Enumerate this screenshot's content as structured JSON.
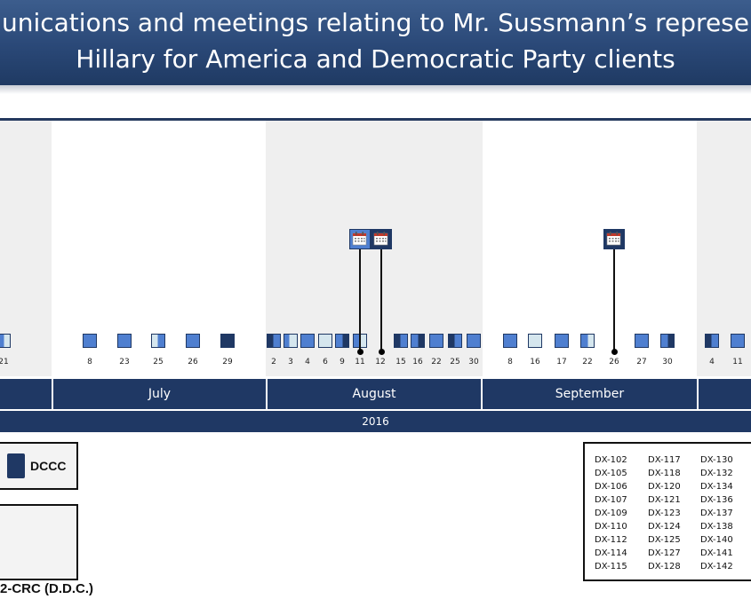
{
  "title": {
    "line1": "unications and meetings relating to Mr. Sussmann’s represe",
    "line2": "Hillary for America and Democratic Party clients"
  },
  "colors": {
    "navy": "#1f3864",
    "medium_blue": "#4f7fd0",
    "light_blue": "#d5e6ee",
    "band_gray": "#efefef"
  },
  "timeline": {
    "year": "2016",
    "months": [
      "",
      "July",
      "August",
      "September",
      ""
    ],
    "days": [
      {
        "label": "21",
        "fill": "medium_right_light"
      },
      {
        "label": "8",
        "fill": "medium"
      },
      {
        "label": "23",
        "fill": "medium"
      },
      {
        "label": "25",
        "fill": "light_left_medium"
      },
      {
        "label": "26",
        "fill": "medium"
      },
      {
        "label": "29",
        "fill": "navy"
      },
      {
        "label": "2",
        "fill": "navy_left_medium"
      },
      {
        "label": "3",
        "fill": "medium_left_light"
      },
      {
        "label": "4",
        "fill": "medium"
      },
      {
        "label": "6",
        "fill": "light"
      },
      {
        "label": "9",
        "fill": "medium_left_navy"
      },
      {
        "label": "11",
        "fill": "medium_right_light"
      },
      {
        "label": "12",
        "fill": "none"
      },
      {
        "label": "15",
        "fill": "navy_left_medium"
      },
      {
        "label": "16",
        "fill": "medium_left_navy"
      },
      {
        "label": "22",
        "fill": "medium"
      },
      {
        "label": "25",
        "fill": "navy_left_medium"
      },
      {
        "label": "30",
        "fill": "medium"
      },
      {
        "label": "8",
        "fill": "medium"
      },
      {
        "label": "16",
        "fill": "light"
      },
      {
        "label": "17",
        "fill": "medium"
      },
      {
        "label": "22",
        "fill": "medium_right_light"
      },
      {
        "label": "26",
        "fill": "none"
      },
      {
        "label": "27",
        "fill": "medium"
      },
      {
        "label": "30",
        "fill": "medium_left_navy"
      },
      {
        "label": "4",
        "fill": "navy_left_medium"
      },
      {
        "label": "11",
        "fill": "medium"
      }
    ],
    "meetings": [
      {
        "day": "11",
        "icon": "calendar-icon",
        "color": "medium"
      },
      {
        "day": "12",
        "icon": "calendar-icon",
        "color": "navy"
      },
      {
        "day": "26",
        "icon": "calendar-icon",
        "color": "navy"
      }
    ]
  },
  "legend": {
    "dccc_label": "DCCC"
  },
  "case_label": "2-CRC (D.D.C.)",
  "exhibits": {
    "col1": [
      "DX-102",
      "DX-105",
      "DX-106",
      "DX-107",
      "DX-109",
      "DX-110",
      "DX-112",
      "DX-114",
      "DX-115"
    ],
    "col2": [
      "DX-117",
      "DX-118",
      "DX-120",
      "DX-121",
      "DX-123",
      "DX-124",
      "DX-125",
      "DX-127",
      "DX-128"
    ],
    "col3": [
      "DX-130",
      "DX-132",
      "DX-134",
      "DX-136",
      "DX-137",
      "DX-138",
      "DX-140",
      "DX-141",
      "DX-142"
    ]
  }
}
